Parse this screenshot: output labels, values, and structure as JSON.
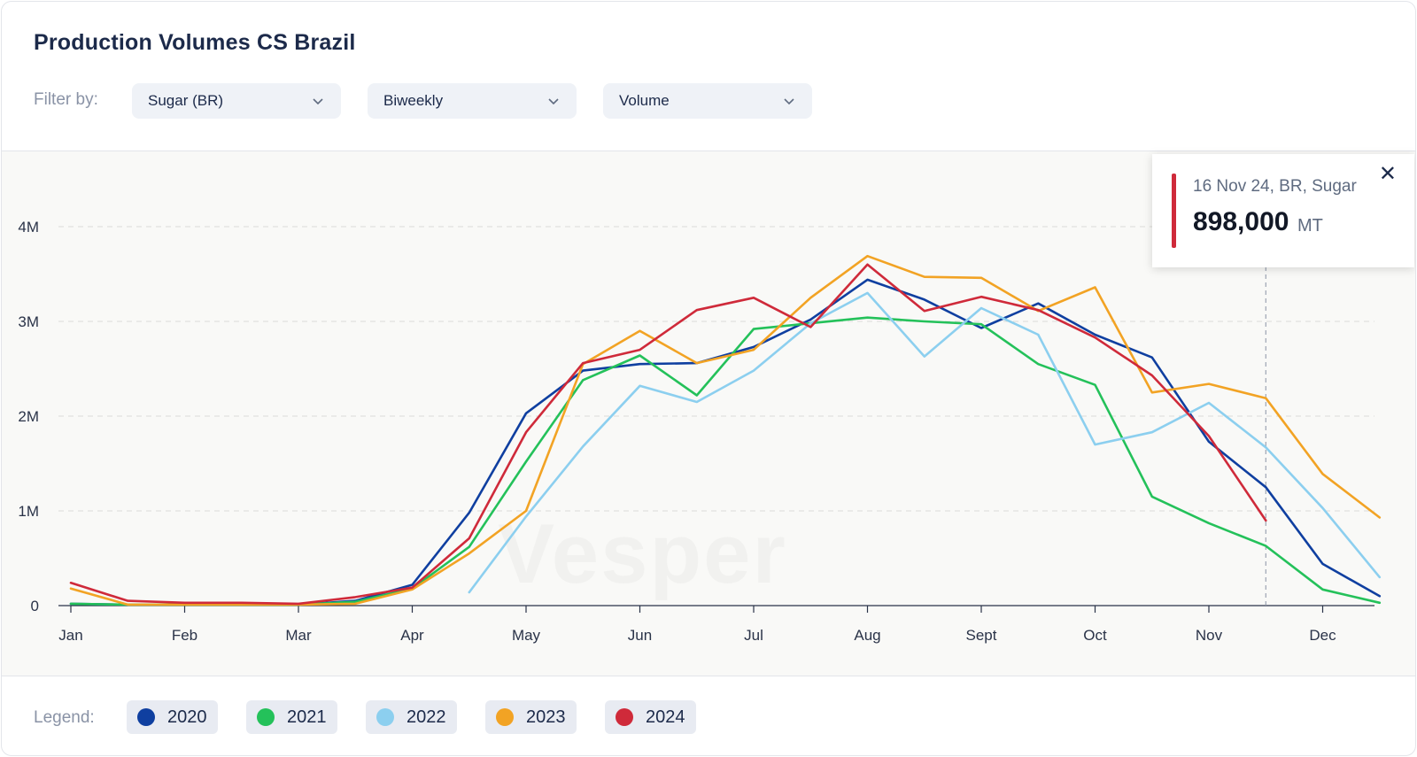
{
  "header": {
    "title": "Production Volumes CS Brazil"
  },
  "filters": {
    "label": "Filter by:",
    "items": [
      {
        "value": "Sugar (BR)"
      },
      {
        "value": "Biweekly"
      },
      {
        "value": "Volume"
      }
    ]
  },
  "watermark": "Vesper",
  "tooltip": {
    "label": "16 Nov 24, BR, Sugar",
    "value": "898,000",
    "unit": "MT",
    "color": "#cf2a3a"
  },
  "legend": {
    "label": "Legend:",
    "items": [
      {
        "name": "2020",
        "color": "#0f3fa0"
      },
      {
        "name": "2021",
        "color": "#24c15a"
      },
      {
        "name": "2022",
        "color": "#8ccfef"
      },
      {
        "name": "2023",
        "color": "#f2a324"
      },
      {
        "name": "2024",
        "color": "#cf2a3a"
      }
    ]
  },
  "chart_data": {
    "type": "line",
    "x_ticks": [
      "Jan",
      "Feb",
      "Mar",
      "Apr",
      "May",
      "Jun",
      "Jul",
      "Aug",
      "Sept",
      "Oct",
      "Nov",
      "Dec"
    ],
    "y_ticks": [
      {
        "value": 0,
        "label": "0"
      },
      {
        "value": 1,
        "label": "1M"
      },
      {
        "value": 2,
        "label": "2M"
      },
      {
        "value": 3,
        "label": "3M"
      },
      {
        "value": 4,
        "label": "4M"
      }
    ],
    "ylim": [
      0,
      4.75
    ],
    "xlim": [
      0,
      11.6
    ],
    "grid": true,
    "marker_x": 10.5,
    "series": [
      {
        "name": "2020",
        "color": "#0f3fa0",
        "points": [
          [
            0,
            0.02
          ],
          [
            0.5,
            0.01
          ],
          [
            1,
            0.01
          ],
          [
            1.5,
            0.01
          ],
          [
            2,
            0.01
          ],
          [
            2.5,
            0.05
          ],
          [
            3,
            0.22
          ],
          [
            3.5,
            0.98
          ],
          [
            4,
            2.03
          ],
          [
            4.5,
            2.48
          ],
          [
            5,
            2.55
          ],
          [
            5.5,
            2.56
          ],
          [
            6,
            2.73
          ],
          [
            6.5,
            3.02
          ],
          [
            7,
            3.44
          ],
          [
            7.5,
            3.23
          ],
          [
            8,
            2.93
          ],
          [
            8.5,
            3.19
          ],
          [
            9,
            2.86
          ],
          [
            9.5,
            2.62
          ],
          [
            10,
            1.73
          ],
          [
            10.5,
            1.25
          ],
          [
            11,
            0.44
          ],
          [
            11.5,
            0.1
          ]
        ]
      },
      {
        "name": "2021",
        "color": "#24c15a",
        "points": [
          [
            0,
            0.02
          ],
          [
            0.5,
            0.01
          ],
          [
            1,
            0.01
          ],
          [
            1.5,
            0.01
          ],
          [
            2,
            0.01
          ],
          [
            2.5,
            0.04
          ],
          [
            3,
            0.18
          ],
          [
            3.5,
            0.62
          ],
          [
            4,
            1.52
          ],
          [
            4.5,
            2.38
          ],
          [
            5,
            2.64
          ],
          [
            5.5,
            2.22
          ],
          [
            6,
            2.92
          ],
          [
            6.5,
            2.98
          ],
          [
            7,
            3.04
          ],
          [
            7.5,
            3.0
          ],
          [
            8,
            2.97
          ],
          [
            8.5,
            2.55
          ],
          [
            9,
            2.33
          ],
          [
            9.5,
            1.15
          ],
          [
            10,
            0.87
          ],
          [
            10.5,
            0.63
          ],
          [
            11,
            0.17
          ],
          [
            11.5,
            0.03
          ]
        ]
      },
      {
        "name": "2022",
        "color": "#8ccfef",
        "points": [
          [
            3.5,
            0.14
          ],
          [
            4,
            0.94
          ],
          [
            4.5,
            1.68
          ],
          [
            5,
            2.32
          ],
          [
            5.5,
            2.15
          ],
          [
            6,
            2.48
          ],
          [
            6.5,
            2.98
          ],
          [
            7,
            3.3
          ],
          [
            7.5,
            2.63
          ],
          [
            8,
            3.14
          ],
          [
            8.5,
            2.86
          ],
          [
            9,
            1.7
          ],
          [
            9.5,
            1.83
          ],
          [
            10,
            2.14
          ],
          [
            10.5,
            1.67
          ],
          [
            11,
            1.03
          ],
          [
            11.5,
            0.3
          ]
        ]
      },
      {
        "name": "2023",
        "color": "#f2a324",
        "points": [
          [
            0,
            0.18
          ],
          [
            0.5,
            0.01
          ],
          [
            1,
            0.01
          ],
          [
            1.5,
            0.01
          ],
          [
            2,
            0.01
          ],
          [
            2.5,
            0.02
          ],
          [
            3,
            0.17
          ],
          [
            3.5,
            0.55
          ],
          [
            4,
            1.0
          ],
          [
            4.5,
            2.55
          ],
          [
            5,
            2.9
          ],
          [
            5.5,
            2.56
          ],
          [
            6,
            2.7
          ],
          [
            6.5,
            3.25
          ],
          [
            7,
            3.69
          ],
          [
            7.5,
            3.47
          ],
          [
            8,
            3.46
          ],
          [
            8.5,
            3.11
          ],
          [
            9,
            3.36
          ],
          [
            9.5,
            2.25
          ],
          [
            10,
            2.34
          ],
          [
            10.5,
            2.19
          ],
          [
            11,
            1.39
          ],
          [
            11.5,
            0.93
          ]
        ]
      },
      {
        "name": "2024",
        "color": "#cf2a3a",
        "points": [
          [
            0,
            0.24
          ],
          [
            0.5,
            0.05
          ],
          [
            1,
            0.03
          ],
          [
            1.5,
            0.03
          ],
          [
            2,
            0.02
          ],
          [
            2.5,
            0.09
          ],
          [
            3,
            0.19
          ],
          [
            3.5,
            0.71
          ],
          [
            4,
            1.83
          ],
          [
            4.5,
            2.56
          ],
          [
            5,
            2.7
          ],
          [
            5.5,
            3.12
          ],
          [
            6,
            3.25
          ],
          [
            6.5,
            2.94
          ],
          [
            7,
            3.6
          ],
          [
            7.5,
            3.11
          ],
          [
            8,
            3.26
          ],
          [
            8.5,
            3.12
          ],
          [
            9,
            2.83
          ],
          [
            9.5,
            2.43
          ],
          [
            10,
            1.79
          ],
          [
            10.5,
            0.898
          ]
        ]
      }
    ]
  }
}
